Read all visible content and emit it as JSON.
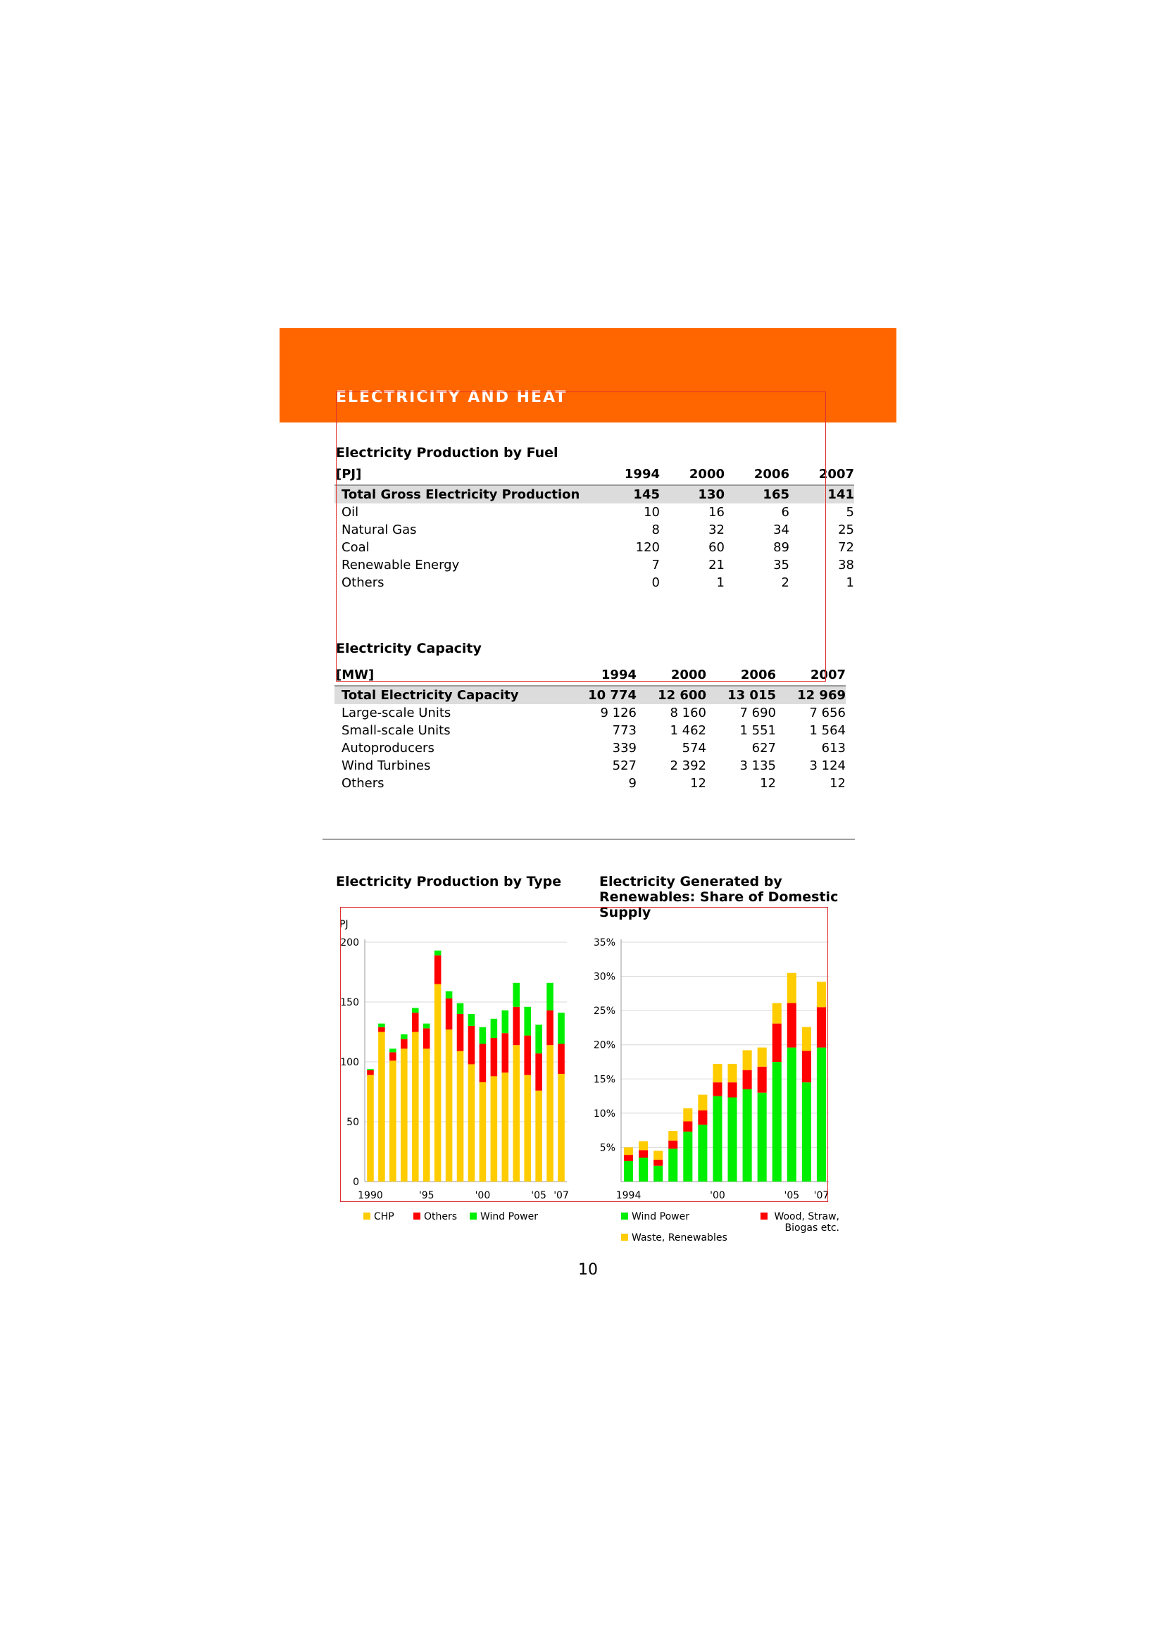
{
  "section": {
    "title": "ELECTRICITY AND HEAT"
  },
  "fuel_table": {
    "title": "Electricity Production by Fuel",
    "unit": "[PJ]",
    "years": [
      "1994",
      "2000",
      "2006",
      "2007"
    ],
    "total": {
      "label": "Total Gross Electricity Production",
      "values": [
        "145",
        "130",
        "165",
        "141"
      ]
    },
    "rows": [
      {
        "label": "Oil",
        "values": [
          "10",
          "16",
          "6",
          "5"
        ]
      },
      {
        "label": "Natural Gas",
        "values": [
          "8",
          "32",
          "34",
          "25"
        ]
      },
      {
        "label": "Coal",
        "values": [
          "120",
          "60",
          "89",
          "72"
        ]
      },
      {
        "label": "Renewable Energy",
        "values": [
          "7",
          "21",
          "35",
          "38"
        ]
      },
      {
        "label": "Others",
        "values": [
          "0",
          "1",
          "2",
          "1"
        ]
      }
    ]
  },
  "capacity_table": {
    "title": "Electricity Capacity",
    "unit": "[MW]",
    "years": [
      "1994",
      "2000",
      "2006",
      "2007"
    ],
    "total": {
      "label": "Total Electricity Capacity",
      "values": [
        "10 774",
        "12 600",
        "13 015",
        "12 969"
      ]
    },
    "rows": [
      {
        "label": "Large-scale Units",
        "values": [
          "9 126",
          "8 160",
          "7 690",
          "7 656"
        ]
      },
      {
        "label": "Small-scale Units",
        "values": [
          "773",
          "1 462",
          "1 551",
          "1 564"
        ]
      },
      {
        "label": "Autoproducers",
        "values": [
          "339",
          "574",
          "627",
          "613"
        ]
      },
      {
        "label": "Wind Turbines",
        "values": [
          "527",
          "2 392",
          "3 135",
          "3 124"
        ]
      },
      {
        "label": "Others",
        "values": [
          "9",
          "12",
          "12",
          "12"
        ]
      }
    ]
  },
  "chart_data": [
    {
      "type": "bar",
      "stacked": true,
      "title": "Electricity Production by Type",
      "ylabel": "PJ",
      "ylim": [
        0,
        200
      ],
      "yticks": [
        0,
        50,
        100,
        150,
        200
      ],
      "x": [
        1990,
        1991,
        1992,
        1993,
        1994,
        1995,
        1996,
        1997,
        1998,
        1999,
        2000,
        2001,
        2002,
        2003,
        2004,
        2005,
        2006,
        2007
      ],
      "xtick_labels": [
        "1990",
        "'95",
        "'00",
        "'05",
        "'07"
      ],
      "xtick_years": [
        1990,
        1995,
        2000,
        2005,
        2007
      ],
      "grid": true,
      "legend": "bottom",
      "series": [
        {
          "name": "CHP",
          "color": "#ffcc00",
          "values": [
            89,
            125,
            101,
            111,
            125,
            111,
            165,
            127,
            109,
            98,
            83,
            88,
            91,
            114,
            89,
            76,
            114,
            90
          ]
        },
        {
          "name": "Others",
          "color": "#ff0000",
          "values": [
            4,
            4,
            7,
            8,
            16,
            17,
            24,
            26,
            31,
            32,
            32,
            32,
            33,
            32,
            33,
            31,
            29,
            25
          ]
        },
        {
          "name": "Wind Power",
          "color": "#00ee00",
          "values": [
            1,
            3,
            3,
            4,
            4,
            4,
            4,
            6,
            9,
            10,
            14,
            16,
            19,
            20,
            24,
            24,
            23,
            26
          ]
        }
      ]
    },
    {
      "type": "bar",
      "stacked": true,
      "title": "Electricity Generated by Renewables: Share of Domestic Supply",
      "ylim": [
        0,
        35
      ],
      "yticks": [
        5,
        10,
        15,
        20,
        25,
        30,
        35
      ],
      "ytick_labels": [
        "5%",
        "10%",
        "15%",
        "20%",
        "25%",
        "30%",
        "35%"
      ],
      "x": [
        1994,
        1995,
        1996,
        1997,
        1998,
        1999,
        2000,
        2001,
        2002,
        2003,
        2004,
        2005,
        2006,
        2007
      ],
      "xtick_labels": [
        "1994",
        "'00",
        "'05",
        "'07"
      ],
      "xtick_years": [
        1994,
        2000,
        2005,
        2007
      ],
      "grid": true,
      "legend": "bottom",
      "series": [
        {
          "name": "Wind Power",
          "color": "#00ee00",
          "values": [
            3.0,
            3.5,
            2.3,
            4.8,
            7.3,
            8.3,
            12.5,
            12.3,
            13.5,
            13.0,
            17.5,
            19.6,
            14.5,
            19.6
          ]
        },
        {
          "name": "Wood, Straw, Biogas etc.",
          "color": "#ff0000",
          "values": [
            0.9,
            1.1,
            0.9,
            1.2,
            1.5,
            2.1,
            2.0,
            2.2,
            2.8,
            3.8,
            5.6,
            6.5,
            4.6,
            5.9
          ]
        },
        {
          "name": "Waste, Renewables",
          "color": "#ffcc00",
          "values": [
            1.1,
            1.3,
            1.3,
            1.4,
            1.9,
            2.3,
            2.7,
            2.7,
            2.9,
            2.8,
            3.0,
            4.4,
            3.5,
            3.7
          ]
        }
      ]
    }
  ],
  "page_number": "10"
}
